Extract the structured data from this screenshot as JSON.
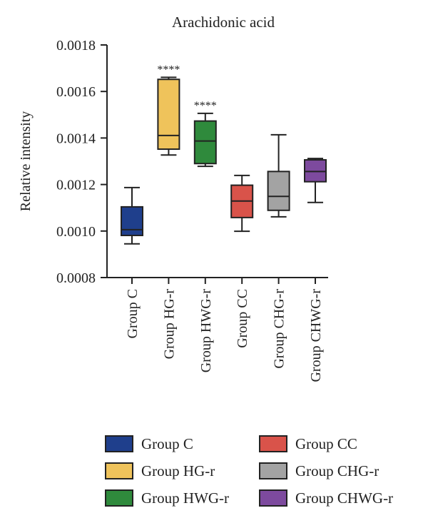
{
  "chart_data": {
    "type": "box",
    "title": "Arachidonic acid",
    "xlabel": "",
    "ylabel": "Relative intensity",
    "ylim": [
      0.0008,
      0.0018
    ],
    "yticks": [
      "0.0008",
      "0.0010",
      "0.0012",
      "0.0014",
      "0.0016",
      "0.0018"
    ],
    "categories": [
      "Group C",
      "Group HG-r",
      "Group HWG-r",
      "Group CC",
      "Group CHG-r",
      "Group CHWG-r"
    ],
    "series": [
      {
        "name": "Group C",
        "color": "#1f3f8c",
        "min": 0.000945,
        "q1": 0.000981,
        "median": 0.001006,
        "q3": 0.001104,
        "max": 0.001187,
        "significance": ""
      },
      {
        "name": "Group HG-r",
        "color": "#efc35b",
        "min": 0.001327,
        "q1": 0.001352,
        "median": 0.001411,
        "q3": 0.001652,
        "max": 0.001661,
        "significance": "****"
      },
      {
        "name": "Group HWG-r",
        "color": "#2f8a3c",
        "min": 0.001278,
        "q1": 0.00129,
        "median": 0.001387,
        "q3": 0.001473,
        "max": 0.001506,
        "significance": "****"
      },
      {
        "name": "Group CC",
        "color": "#d9534a",
        "min": 0.000999,
        "q1": 0.001058,
        "median": 0.001129,
        "q3": 0.001197,
        "max": 0.001239,
        "significance": ""
      },
      {
        "name": "Group CHG-r",
        "color": "#a3a3a3",
        "min": 0.001061,
        "q1": 0.001089,
        "median": 0.001149,
        "q3": 0.001256,
        "max": 0.001414,
        "significance": ""
      },
      {
        "name": "Group CHWG-r",
        "color": "#7d4a9e",
        "min": 0.001123,
        "q1": 0.001212,
        "median": 0.001256,
        "q3": 0.001306,
        "max": 0.001312,
        "significance": ""
      }
    ],
    "legend": {
      "placement": "bottom",
      "items": [
        "Group C",
        "Group CC",
        "Group HG-r",
        "Group CHG-r",
        "Group HWG-r",
        "Group CHWG-r"
      ]
    },
    "grid": false
  }
}
